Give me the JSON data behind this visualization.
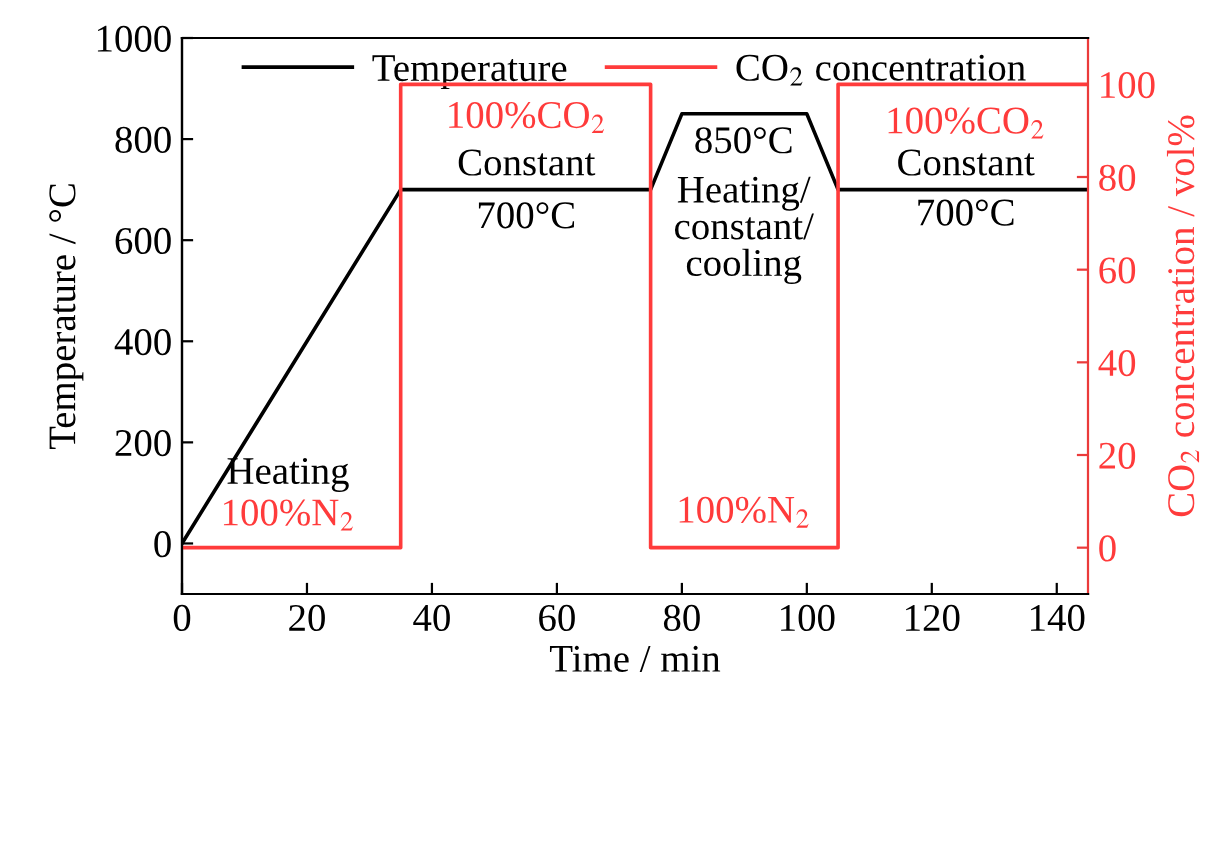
{
  "chart_data": {
    "type": "line",
    "xlabel": "Time / min",
    "ylabel": "Temperature / °C",
    "y2label": "CO$_{2}$ concentration / vol%",
    "xlim": [
      0,
      145
    ],
    "xticks": [
      0,
      20,
      40,
      60,
      80,
      100,
      120,
      140
    ],
    "ylim": [
      -100,
      1000
    ],
    "yticks": [
      0,
      200,
      400,
      600,
      800,
      1000
    ],
    "y2lim": [
      -10,
      110
    ],
    "y2ticks": [
      0,
      20,
      40,
      60,
      80,
      100
    ],
    "series": [
      {
        "name": "Temperature",
        "color": "#000000",
        "x": [
          0,
          35,
          75,
          80,
          100,
          105,
          145
        ],
        "values": [
          0,
          700,
          700,
          850,
          850,
          700,
          700
        ]
      },
      {
        "name": "CO$_{2}$ concentration",
        "color": "#ff3b3b",
        "axis": "y2",
        "x": [
          0,
          35,
          35,
          75,
          75,
          105,
          105,
          145
        ],
        "values": [
          0,
          0,
          100,
          100,
          0,
          0,
          100,
          100
        ]
      }
    ],
    "annotations": [
      "Heating",
      "100%N$_{2}$",
      "100%CO$_{2}$",
      "Constant",
      "700°C",
      "850°C",
      "Heating/\nconstant/\ncooling",
      "100%N$_{2}$",
      "100%CO$_{2}$",
      "Constant",
      "700°C"
    ],
    "legend": "top",
    "grid": false,
    "marker": "none",
    "line_style": "solid"
  }
}
